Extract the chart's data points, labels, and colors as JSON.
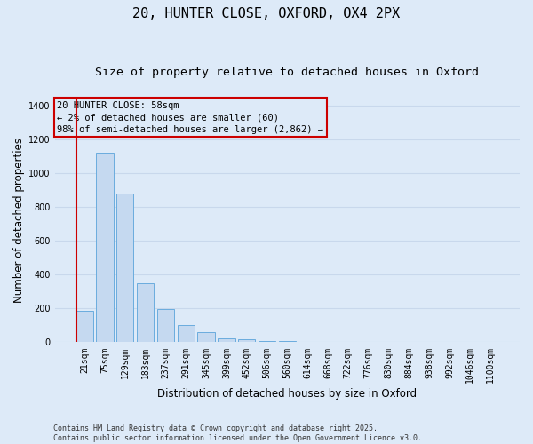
{
  "title": "20, HUNTER CLOSE, OXFORD, OX4 2PX",
  "subtitle": "Size of property relative to detached houses in Oxford",
  "xlabel": "Distribution of detached houses by size in Oxford",
  "ylabel": "Number of detached properties",
  "bar_color": "#c5d9f0",
  "bar_edge_color": "#6aacde",
  "background_color": "#ddeaf8",
  "grid_color": "#c8d8ec",
  "categories": [
    "21sqm",
    "75sqm",
    "129sqm",
    "183sqm",
    "237sqm",
    "291sqm",
    "345sqm",
    "399sqm",
    "452sqm",
    "506sqm",
    "560sqm",
    "614sqm",
    "668sqm",
    "722sqm",
    "776sqm",
    "830sqm",
    "884sqm",
    "938sqm",
    "992sqm",
    "1046sqm",
    "1100sqm"
  ],
  "values": [
    185,
    1125,
    880,
    350,
    195,
    100,
    60,
    22,
    20,
    10,
    6,
    2,
    1,
    1,
    0,
    0,
    0,
    0,
    0,
    0,
    0
  ],
  "ylim": [
    0,
    1450
  ],
  "yticks": [
    0,
    200,
    400,
    600,
    800,
    1000,
    1200,
    1400
  ],
  "vline_color": "#cc0000",
  "annotation_text": "20 HUNTER CLOSE: 58sqm\n← 2% of detached houses are smaller (60)\n98% of semi-detached houses are larger (2,862) →",
  "footer_line1": "Contains HM Land Registry data © Crown copyright and database right 2025.",
  "footer_line2": "Contains public sector information licensed under the Open Government Licence v3.0.",
  "title_fontsize": 11,
  "subtitle_fontsize": 9.5,
  "xlabel_fontsize": 8.5,
  "ylabel_fontsize": 8.5,
  "tick_fontsize": 7,
  "annot_fontsize": 7.5,
  "footer_fontsize": 6
}
